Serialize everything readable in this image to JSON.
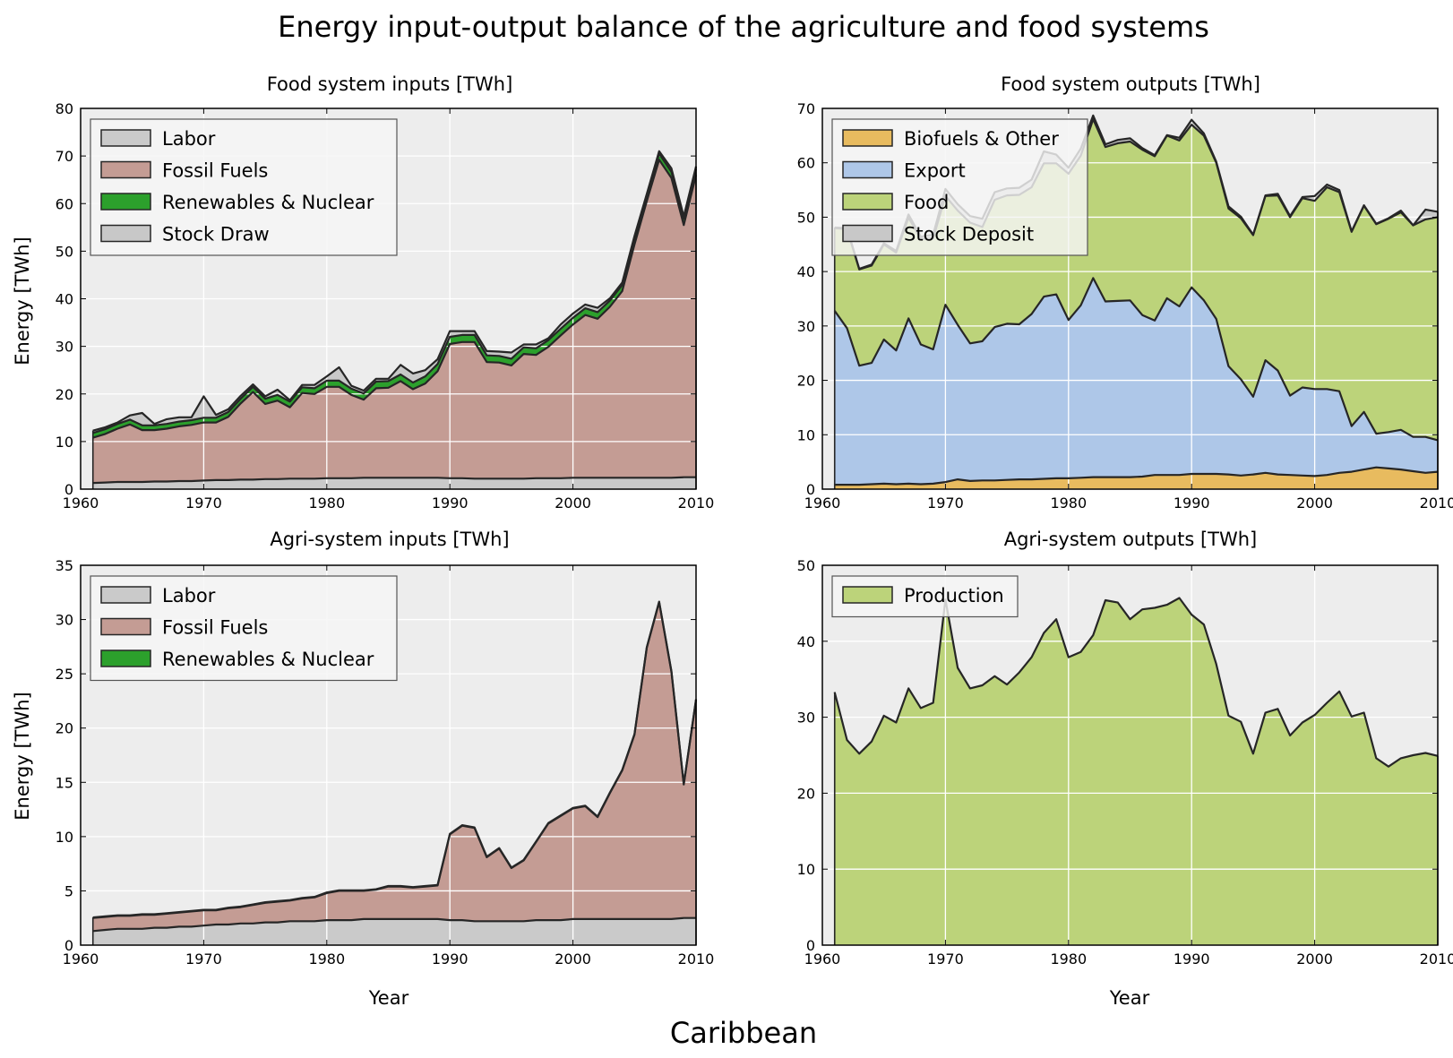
{
  "figure": {
    "title": "Energy input-output balance of the agriculture and food systems",
    "region": "Caribbean",
    "background": "#ffffff",
    "axes_background": "#ededed",
    "line_color": "#262626"
  },
  "chart_data": [
    {
      "type": "area",
      "stacked": true,
      "title": "Food system inputs [TWh]",
      "xlabel": "",
      "ylabel": "Energy [TWh]",
      "xlim": [
        1960,
        2010
      ],
      "ylim": [
        0,
        80
      ],
      "xticks": [
        1960,
        1970,
        1980,
        1990,
        2000,
        2010
      ],
      "yticks": [
        0,
        10,
        20,
        30,
        40,
        50,
        60,
        70,
        80
      ],
      "grid": true,
      "legend_position": "top-left",
      "x": [
        1961,
        1962,
        1963,
        1964,
        1965,
        1966,
        1967,
        1968,
        1969,
        1970,
        1971,
        1972,
        1973,
        1974,
        1975,
        1976,
        1977,
        1978,
        1979,
        1980,
        1981,
        1982,
        1983,
        1984,
        1985,
        1986,
        1987,
        1988,
        1989,
        1990,
        1991,
        1992,
        1993,
        1994,
        1995,
        1996,
        1997,
        1998,
        1999,
        2000,
        2001,
        2002,
        2003,
        2004,
        2005,
        2006,
        2007,
        2008,
        2009,
        2010
      ],
      "series": [
        {
          "name": "Labor",
          "color": "#cacaca",
          "values": [
            1.3,
            1.4,
            1.5,
            1.5,
            1.5,
            1.6,
            1.6,
            1.7,
            1.7,
            1.8,
            1.9,
            1.9,
            2.0,
            2.0,
            2.1,
            2.1,
            2.2,
            2.2,
            2.2,
            2.3,
            2.3,
            2.3,
            2.4,
            2.4,
            2.4,
            2.4,
            2.4,
            2.4,
            2.4,
            2.3,
            2.3,
            2.2,
            2.2,
            2.2,
            2.2,
            2.2,
            2.3,
            2.3,
            2.3,
            2.4,
            2.4,
            2.4,
            2.4,
            2.4,
            2.4,
            2.4,
            2.4,
            2.4,
            2.5,
            2.5
          ]
        },
        {
          "name": "Fossil Fuels",
          "color": "#c49c94",
          "values": [
            9.5,
            10.2,
            11.2,
            12.1,
            10.9,
            10.8,
            11.1,
            11.5,
            11.8,
            12.2,
            12.1,
            13.3,
            16.0,
            18.4,
            15.8,
            16.5,
            15.0,
            18.0,
            17.8,
            19.2,
            19.2,
            17.5,
            16.4,
            18.8,
            18.9,
            20.3,
            18.6,
            19.8,
            22.4,
            28.2,
            28.6,
            28.7,
            24.5,
            24.4,
            23.8,
            26.2,
            25.9,
            27.6,
            30.0,
            32.2,
            34.2,
            33.4,
            35.9,
            39.2,
            49.0,
            58.1,
            66.8,
            63.0,
            53.0,
            63.5
          ]
        },
        {
          "name": "Renewables & Nuclear",
          "color": "#2ca02c",
          "values": [
            1.0,
            1.0,
            1.0,
            1.0,
            1.0,
            1.0,
            1.0,
            1.0,
            1.0,
            1.0,
            1.0,
            1.0,
            1.0,
            1.1,
            1.1,
            1.2,
            1.2,
            1.2,
            1.2,
            1.3,
            1.3,
            1.3,
            1.3,
            1.4,
            1.4,
            1.4,
            1.4,
            1.5,
            1.5,
            1.5,
            1.5,
            1.5,
            1.4,
            1.4,
            1.4,
            1.4,
            1.4,
            1.4,
            1.4,
            1.4,
            1.4,
            1.4,
            1.3,
            1.3,
            1.3,
            1.3,
            1.3,
            1.3,
            1.3,
            1.3
          ]
        },
        {
          "name": "Stock Draw",
          "color": "#c8c8c8",
          "values": [
            0.5,
            0.4,
            0.3,
            0.9,
            2.6,
            0.3,
            1.0,
            0.9,
            0.6,
            4.5,
            0.6,
            0.6,
            0.6,
            0.5,
            0.5,
            1.1,
            0.3,
            0.5,
            0.7,
            0.9,
            2.8,
            0.6,
            0.6,
            0.6,
            0.5,
            2.0,
            1.9,
            1.3,
            1.0,
            1.2,
            0.8,
            0.8,
            0.9,
            0.9,
            1.3,
            0.6,
            0.8,
            0.4,
            0.9,
            0.9,
            0.8,
            0.9,
            0.5,
            0.5,
            0.5,
            0.2,
            0.5,
            0.7,
            0.5,
            0.5
          ]
        }
      ]
    },
    {
      "type": "area",
      "stacked": true,
      "title": "Food system outputs [TWh]",
      "xlabel": "",
      "ylabel": "",
      "xlim": [
        1960,
        2010
      ],
      "ylim": [
        0,
        70
      ],
      "xticks": [
        1960,
        1970,
        1980,
        1990,
        2000,
        2010
      ],
      "yticks": [
        0,
        10,
        20,
        30,
        40,
        50,
        60,
        70
      ],
      "grid": true,
      "legend_position": "top-left",
      "x": [
        1961,
        1962,
        1963,
        1964,
        1965,
        1966,
        1967,
        1968,
        1969,
        1970,
        1971,
        1972,
        1973,
        1974,
        1975,
        1976,
        1977,
        1978,
        1979,
        1980,
        1981,
        1982,
        1983,
        1984,
        1985,
        1986,
        1987,
        1988,
        1989,
        1990,
        1991,
        1992,
        1993,
        1994,
        1995,
        1996,
        1997,
        1998,
        1999,
        2000,
        2001,
        2002,
        2003,
        2004,
        2005,
        2006,
        2007,
        2008,
        2009,
        2010
      ],
      "series": [
        {
          "name": "Biofuels & Other",
          "color": "#e8bb5f",
          "values": [
            0.8,
            0.8,
            0.8,
            0.9,
            1.0,
            0.9,
            1.0,
            0.9,
            1.0,
            1.3,
            1.8,
            1.5,
            1.6,
            1.6,
            1.7,
            1.8,
            1.8,
            1.9,
            2.0,
            2.0,
            2.1,
            2.2,
            2.2,
            2.2,
            2.2,
            2.3,
            2.6,
            2.6,
            2.6,
            2.8,
            2.8,
            2.8,
            2.7,
            2.5,
            2.7,
            3.0,
            2.7,
            2.6,
            2.5,
            2.4,
            2.6,
            3.0,
            3.2,
            3.6,
            4.0,
            3.8,
            3.6,
            3.3,
            3.0,
            3.2
          ]
        },
        {
          "name": "Export",
          "color": "#aec7e8",
          "values": [
            32.0,
            28.8,
            21.9,
            22.3,
            26.5,
            24.6,
            30.4,
            25.7,
            24.7,
            32.6,
            28.4,
            25.3,
            25.6,
            28.2,
            28.7,
            28.5,
            30.4,
            33.5,
            33.8,
            29.1,
            31.7,
            36.6,
            32.3,
            32.4,
            32.5,
            29.7,
            28.4,
            32.5,
            31.0,
            34.3,
            31.9,
            28.5,
            19.9,
            17.7,
            14.3,
            20.7,
            19.1,
            14.6,
            16.2,
            16.0,
            15.8,
            15.0,
            8.4,
            10.6,
            6.2,
            6.7,
            7.3,
            6.3,
            6.6,
            5.8
          ]
        },
        {
          "name": "Food",
          "color": "#bcd37a",
          "values": [
            15.2,
            18.2,
            17.7,
            17.9,
            17.5,
            18.0,
            18.5,
            19.4,
            20.4,
            20.0,
            21.0,
            22.2,
            21.0,
            23.4,
            23.6,
            23.8,
            23.3,
            24.5,
            24.1,
            26.9,
            27.5,
            29.2,
            28.4,
            29.0,
            29.2,
            30.4,
            30.2,
            29.9,
            30.5,
            29.9,
            30.3,
            28.7,
            29.0,
            29.6,
            29.7,
            30.2,
            32.2,
            32.8,
            34.8,
            34.6,
            37.1,
            36.6,
            35.7,
            37.9,
            38.5,
            39.2,
            40.0,
            38.9,
            40.0,
            41.0
          ]
        },
        {
          "name": "Stock Deposit",
          "color": "#c8c8c8",
          "values": [
            0.1,
            0.2,
            0.1,
            0.2,
            0.2,
            0.3,
            0.6,
            0.4,
            0.7,
            1.3,
            1.2,
            1.2,
            1.5,
            1.4,
            1.3,
            1.3,
            1.4,
            2.2,
            1.6,
            1.1,
            1.3,
            0.7,
            0.5,
            0.6,
            0.6,
            0.3,
            0.2,
            0.1,
            0.5,
            0.9,
            0.4,
            0.2,
            0.4,
            0.3,
            0.1,
            0.1,
            0.3,
            0.2,
            0.2,
            0.9,
            0.5,
            0.4,
            0.1,
            0.1,
            0.1,
            0.1,
            0.3,
            0.0,
            1.8,
            1.0
          ]
        }
      ]
    },
    {
      "type": "area",
      "stacked": true,
      "title": "Agri-system inputs [TWh]",
      "xlabel": "Year",
      "ylabel": "Energy [TWh]",
      "xlim": [
        1960,
        2010
      ],
      "ylim": [
        0,
        35
      ],
      "xticks": [
        1960,
        1970,
        1980,
        1990,
        2000,
        2010
      ],
      "yticks": [
        0,
        5,
        10,
        15,
        20,
        25,
        30,
        35
      ],
      "grid": true,
      "legend_position": "top-left",
      "x": [
        1961,
        1962,
        1963,
        1964,
        1965,
        1966,
        1967,
        1968,
        1969,
        1970,
        1971,
        1972,
        1973,
        1974,
        1975,
        1976,
        1977,
        1978,
        1979,
        1980,
        1981,
        1982,
        1983,
        1984,
        1985,
        1986,
        1987,
        1988,
        1989,
        1990,
        1991,
        1992,
        1993,
        1994,
        1995,
        1996,
        1997,
        1998,
        1999,
        2000,
        2001,
        2002,
        2003,
        2004,
        2005,
        2006,
        2007,
        2008,
        2009,
        2010
      ],
      "series": [
        {
          "name": "Labor",
          "color": "#cacaca",
          "values": [
            1.3,
            1.4,
            1.5,
            1.5,
            1.5,
            1.6,
            1.6,
            1.7,
            1.7,
            1.8,
            1.9,
            1.9,
            2.0,
            2.0,
            2.1,
            2.1,
            2.2,
            2.2,
            2.2,
            2.3,
            2.3,
            2.3,
            2.4,
            2.4,
            2.4,
            2.4,
            2.4,
            2.4,
            2.4,
            2.3,
            2.3,
            2.2,
            2.2,
            2.2,
            2.2,
            2.2,
            2.3,
            2.3,
            2.3,
            2.4,
            2.4,
            2.4,
            2.4,
            2.4,
            2.4,
            2.4,
            2.4,
            2.4,
            2.5,
            2.5
          ]
        },
        {
          "name": "Fossil Fuels",
          "color": "#c49c94",
          "values": [
            1.2,
            1.2,
            1.2,
            1.2,
            1.3,
            1.2,
            1.3,
            1.3,
            1.4,
            1.4,
            1.3,
            1.5,
            1.5,
            1.7,
            1.8,
            1.9,
            1.9,
            2.1,
            2.2,
            2.5,
            2.7,
            2.7,
            2.6,
            2.7,
            3.0,
            3.0,
            2.9,
            3.0,
            3.1,
            7.9,
            8.7,
            8.6,
            5.9,
            6.7,
            4.9,
            5.6,
            7.2,
            8.9,
            9.6,
            10.2,
            10.4,
            9.4,
            11.6,
            13.7,
            17.0,
            25.0,
            29.2,
            22.8,
            12.3,
            20.1
          ]
        },
        {
          "name": "Renewables & Nuclear",
          "color": "#2ca02c",
          "values": [
            0.05,
            0.05,
            0.05,
            0.05,
            0.05,
            0.05,
            0.05,
            0.05,
            0.05,
            0.05,
            0.05,
            0.05,
            0.05,
            0.05,
            0.05,
            0.05,
            0.05,
            0.05,
            0.05,
            0.05,
            0.05,
            0.05,
            0.05,
            0.05,
            0.05,
            0.05,
            0.05,
            0.05,
            0.05,
            0.05,
            0.05,
            0.05,
            0.05,
            0.05,
            0.05,
            0.05,
            0.05,
            0.05,
            0.05,
            0.05,
            0.05,
            0.05,
            0.05,
            0.05,
            0.05,
            0.05,
            0.05,
            0.05,
            0.05,
            0.05
          ]
        }
      ]
    },
    {
      "type": "area",
      "stacked": true,
      "title": "Agri-system outputs [TWh]",
      "xlabel": "Year",
      "ylabel": "",
      "xlim": [
        1960,
        2010
      ],
      "ylim": [
        0,
        50
      ],
      "xticks": [
        1960,
        1970,
        1980,
        1990,
        2000,
        2010
      ],
      "yticks": [
        0,
        10,
        20,
        30,
        40,
        50
      ],
      "grid": true,
      "legend_position": "top-left",
      "x": [
        1961,
        1962,
        1963,
        1964,
        1965,
        1966,
        1967,
        1968,
        1969,
        1970,
        1971,
        1972,
        1973,
        1974,
        1975,
        1976,
        1977,
        1978,
        1979,
        1980,
        1981,
        1982,
        1983,
        1984,
        1985,
        1986,
        1987,
        1988,
        1989,
        1990,
        1991,
        1992,
        1993,
        1994,
        1995,
        1996,
        1997,
        1998,
        1999,
        2000,
        2001,
        2002,
        2003,
        2004,
        2005,
        2006,
        2007,
        2008,
        2009,
        2010
      ],
      "series": [
        {
          "name": "Production",
          "color": "#bcd37a",
          "values": [
            33.3,
            27.0,
            25.2,
            26.8,
            30.2,
            29.3,
            33.8,
            31.2,
            31.9,
            45.5,
            36.5,
            33.8,
            34.2,
            35.4,
            34.3,
            35.9,
            37.9,
            41.1,
            42.9,
            37.9,
            38.6,
            40.8,
            45.4,
            45.1,
            42.9,
            44.2,
            44.4,
            44.8,
            45.7,
            43.5,
            42.2,
            37.0,
            30.2,
            29.4,
            25.2,
            30.6,
            31.1,
            27.6,
            29.3,
            30.3,
            31.9,
            33.4,
            30.1,
            30.6,
            24.6,
            23.5,
            24.6,
            25.0,
            25.3,
            24.9
          ]
        }
      ]
    }
  ]
}
